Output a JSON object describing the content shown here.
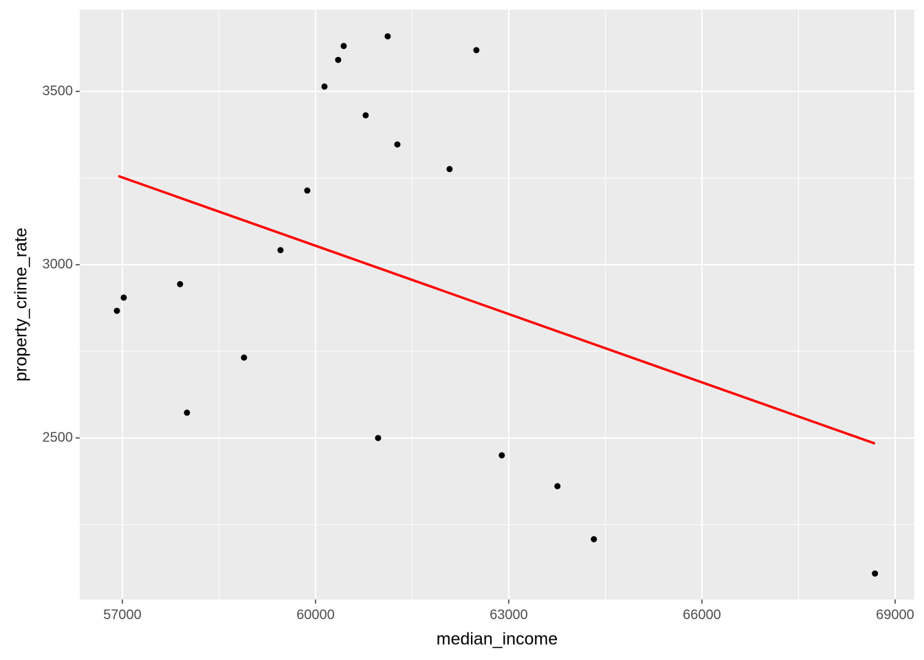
{
  "chart_data": {
    "type": "scatter",
    "x_label": "median_income",
    "y_label": "property_crime_rate",
    "xlim": [
      56338,
      69299
    ],
    "ylim": [
      2034,
      3736
    ],
    "xticks": [
      57000,
      60000,
      63000,
      66000,
      69000
    ],
    "yticks": [
      2500,
      3000,
      3500
    ],
    "x_minor_ticks": [
      58500,
      61500,
      64500,
      67500
    ],
    "y_minor_ticks": [
      2250,
      2750,
      3250
    ],
    "grid": true,
    "point_color": "#000000",
    "x": [
      56915,
      57021,
      57896,
      58003,
      58889,
      59455,
      59871,
      60138,
      60351,
      60437,
      60778,
      60971,
      61120,
      61270,
      62081,
      62497,
      62892,
      63756,
      64322,
      68687
    ],
    "values": [
      2867,
      2905,
      2944,
      2573,
      2732,
      3042,
      3214,
      3514,
      3591,
      3631,
      3431,
      2500,
      3659,
      3347,
      3276,
      3619,
      2450,
      2361,
      2208,
      2109
    ],
    "fit": {
      "color": "#ff0000",
      "x": [
        56936,
        68687
      ],
      "values": [
        3256,
        2484
      ]
    }
  }
}
